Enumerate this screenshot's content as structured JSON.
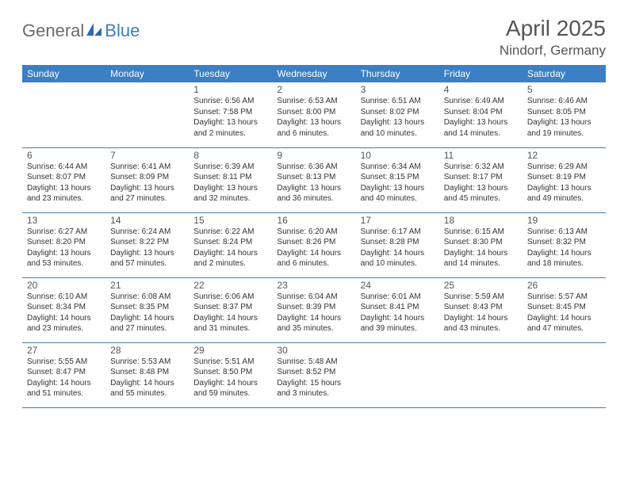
{
  "logo": {
    "part1": "General",
    "part2": "Blue"
  },
  "header": {
    "title": "April 2025",
    "subtitle": "Nindorf, Germany"
  },
  "colors": {
    "header_bg": "#3b7fc4",
    "header_fg": "#ffffff",
    "row_border": "#4a7aa8",
    "text": "#333333",
    "logo_gray": "#6b6b6b",
    "logo_blue": "#3b7fc4"
  },
  "weekdays": [
    "Sunday",
    "Monday",
    "Tuesday",
    "Wednesday",
    "Thursday",
    "Friday",
    "Saturday"
  ],
  "weeks": [
    [
      null,
      null,
      {
        "n": "1",
        "sr": "Sunrise: 6:56 AM",
        "ss": "Sunset: 7:58 PM",
        "dl": "Daylight: 13 hours and 2 minutes."
      },
      {
        "n": "2",
        "sr": "Sunrise: 6:53 AM",
        "ss": "Sunset: 8:00 PM",
        "dl": "Daylight: 13 hours and 6 minutes."
      },
      {
        "n": "3",
        "sr": "Sunrise: 6:51 AM",
        "ss": "Sunset: 8:02 PM",
        "dl": "Daylight: 13 hours and 10 minutes."
      },
      {
        "n": "4",
        "sr": "Sunrise: 6:49 AM",
        "ss": "Sunset: 8:04 PM",
        "dl": "Daylight: 13 hours and 14 minutes."
      },
      {
        "n": "5",
        "sr": "Sunrise: 6:46 AM",
        "ss": "Sunset: 8:05 PM",
        "dl": "Daylight: 13 hours and 19 minutes."
      }
    ],
    [
      {
        "n": "6",
        "sr": "Sunrise: 6:44 AM",
        "ss": "Sunset: 8:07 PM",
        "dl": "Daylight: 13 hours and 23 minutes."
      },
      {
        "n": "7",
        "sr": "Sunrise: 6:41 AM",
        "ss": "Sunset: 8:09 PM",
        "dl": "Daylight: 13 hours and 27 minutes."
      },
      {
        "n": "8",
        "sr": "Sunrise: 6:39 AM",
        "ss": "Sunset: 8:11 PM",
        "dl": "Daylight: 13 hours and 32 minutes."
      },
      {
        "n": "9",
        "sr": "Sunrise: 6:36 AM",
        "ss": "Sunset: 8:13 PM",
        "dl": "Daylight: 13 hours and 36 minutes."
      },
      {
        "n": "10",
        "sr": "Sunrise: 6:34 AM",
        "ss": "Sunset: 8:15 PM",
        "dl": "Daylight: 13 hours and 40 minutes."
      },
      {
        "n": "11",
        "sr": "Sunrise: 6:32 AM",
        "ss": "Sunset: 8:17 PM",
        "dl": "Daylight: 13 hours and 45 minutes."
      },
      {
        "n": "12",
        "sr": "Sunrise: 6:29 AM",
        "ss": "Sunset: 8:19 PM",
        "dl": "Daylight: 13 hours and 49 minutes."
      }
    ],
    [
      {
        "n": "13",
        "sr": "Sunrise: 6:27 AM",
        "ss": "Sunset: 8:20 PM",
        "dl": "Daylight: 13 hours and 53 minutes."
      },
      {
        "n": "14",
        "sr": "Sunrise: 6:24 AM",
        "ss": "Sunset: 8:22 PM",
        "dl": "Daylight: 13 hours and 57 minutes."
      },
      {
        "n": "15",
        "sr": "Sunrise: 6:22 AM",
        "ss": "Sunset: 8:24 PM",
        "dl": "Daylight: 14 hours and 2 minutes."
      },
      {
        "n": "16",
        "sr": "Sunrise: 6:20 AM",
        "ss": "Sunset: 8:26 PM",
        "dl": "Daylight: 14 hours and 6 minutes."
      },
      {
        "n": "17",
        "sr": "Sunrise: 6:17 AM",
        "ss": "Sunset: 8:28 PM",
        "dl": "Daylight: 14 hours and 10 minutes."
      },
      {
        "n": "18",
        "sr": "Sunrise: 6:15 AM",
        "ss": "Sunset: 8:30 PM",
        "dl": "Daylight: 14 hours and 14 minutes."
      },
      {
        "n": "19",
        "sr": "Sunrise: 6:13 AM",
        "ss": "Sunset: 8:32 PM",
        "dl": "Daylight: 14 hours and 18 minutes."
      }
    ],
    [
      {
        "n": "20",
        "sr": "Sunrise: 6:10 AM",
        "ss": "Sunset: 8:34 PM",
        "dl": "Daylight: 14 hours and 23 minutes."
      },
      {
        "n": "21",
        "sr": "Sunrise: 6:08 AM",
        "ss": "Sunset: 8:35 PM",
        "dl": "Daylight: 14 hours and 27 minutes."
      },
      {
        "n": "22",
        "sr": "Sunrise: 6:06 AM",
        "ss": "Sunset: 8:37 PM",
        "dl": "Daylight: 14 hours and 31 minutes."
      },
      {
        "n": "23",
        "sr": "Sunrise: 6:04 AM",
        "ss": "Sunset: 8:39 PM",
        "dl": "Daylight: 14 hours and 35 minutes."
      },
      {
        "n": "24",
        "sr": "Sunrise: 6:01 AM",
        "ss": "Sunset: 8:41 PM",
        "dl": "Daylight: 14 hours and 39 minutes."
      },
      {
        "n": "25",
        "sr": "Sunrise: 5:59 AM",
        "ss": "Sunset: 8:43 PM",
        "dl": "Daylight: 14 hours and 43 minutes."
      },
      {
        "n": "26",
        "sr": "Sunrise: 5:57 AM",
        "ss": "Sunset: 8:45 PM",
        "dl": "Daylight: 14 hours and 47 minutes."
      }
    ],
    [
      {
        "n": "27",
        "sr": "Sunrise: 5:55 AM",
        "ss": "Sunset: 8:47 PM",
        "dl": "Daylight: 14 hours and 51 minutes."
      },
      {
        "n": "28",
        "sr": "Sunrise: 5:53 AM",
        "ss": "Sunset: 8:48 PM",
        "dl": "Daylight: 14 hours and 55 minutes."
      },
      {
        "n": "29",
        "sr": "Sunrise: 5:51 AM",
        "ss": "Sunset: 8:50 PM",
        "dl": "Daylight: 14 hours and 59 minutes."
      },
      {
        "n": "30",
        "sr": "Sunrise: 5:48 AM",
        "ss": "Sunset: 8:52 PM",
        "dl": "Daylight: 15 hours and 3 minutes."
      },
      null,
      null,
      null
    ]
  ]
}
